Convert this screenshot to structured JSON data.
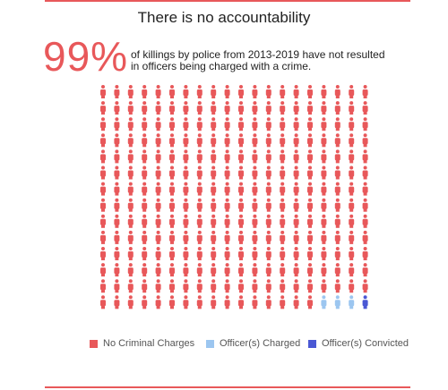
{
  "title": "There is no accountability",
  "stat": {
    "value": "99%",
    "text": "of killings by police from 2013-2019 have not resulted in officers being charged with a crime."
  },
  "colors": {
    "accent": "#e8585a",
    "charged": "#9cc6f0",
    "convicted": "#4a58d4"
  },
  "chart_data": {
    "type": "waffle",
    "rows": 14,
    "cols": 20,
    "categories": [
      "No Criminal Charges",
      "Officer(s) Charged",
      "Officer(s) Convicted"
    ],
    "counts": [
      276,
      3,
      1
    ],
    "colors": [
      "#e8585a",
      "#9cc6f0",
      "#4a58d4"
    ]
  },
  "legend": [
    {
      "label": "No Criminal Charges",
      "color": "#e8585a"
    },
    {
      "label": "Officer(s) Charged",
      "color": "#9cc6f0"
    },
    {
      "label": "Officer(s) Convicted",
      "color": "#4a58d4"
    }
  ]
}
